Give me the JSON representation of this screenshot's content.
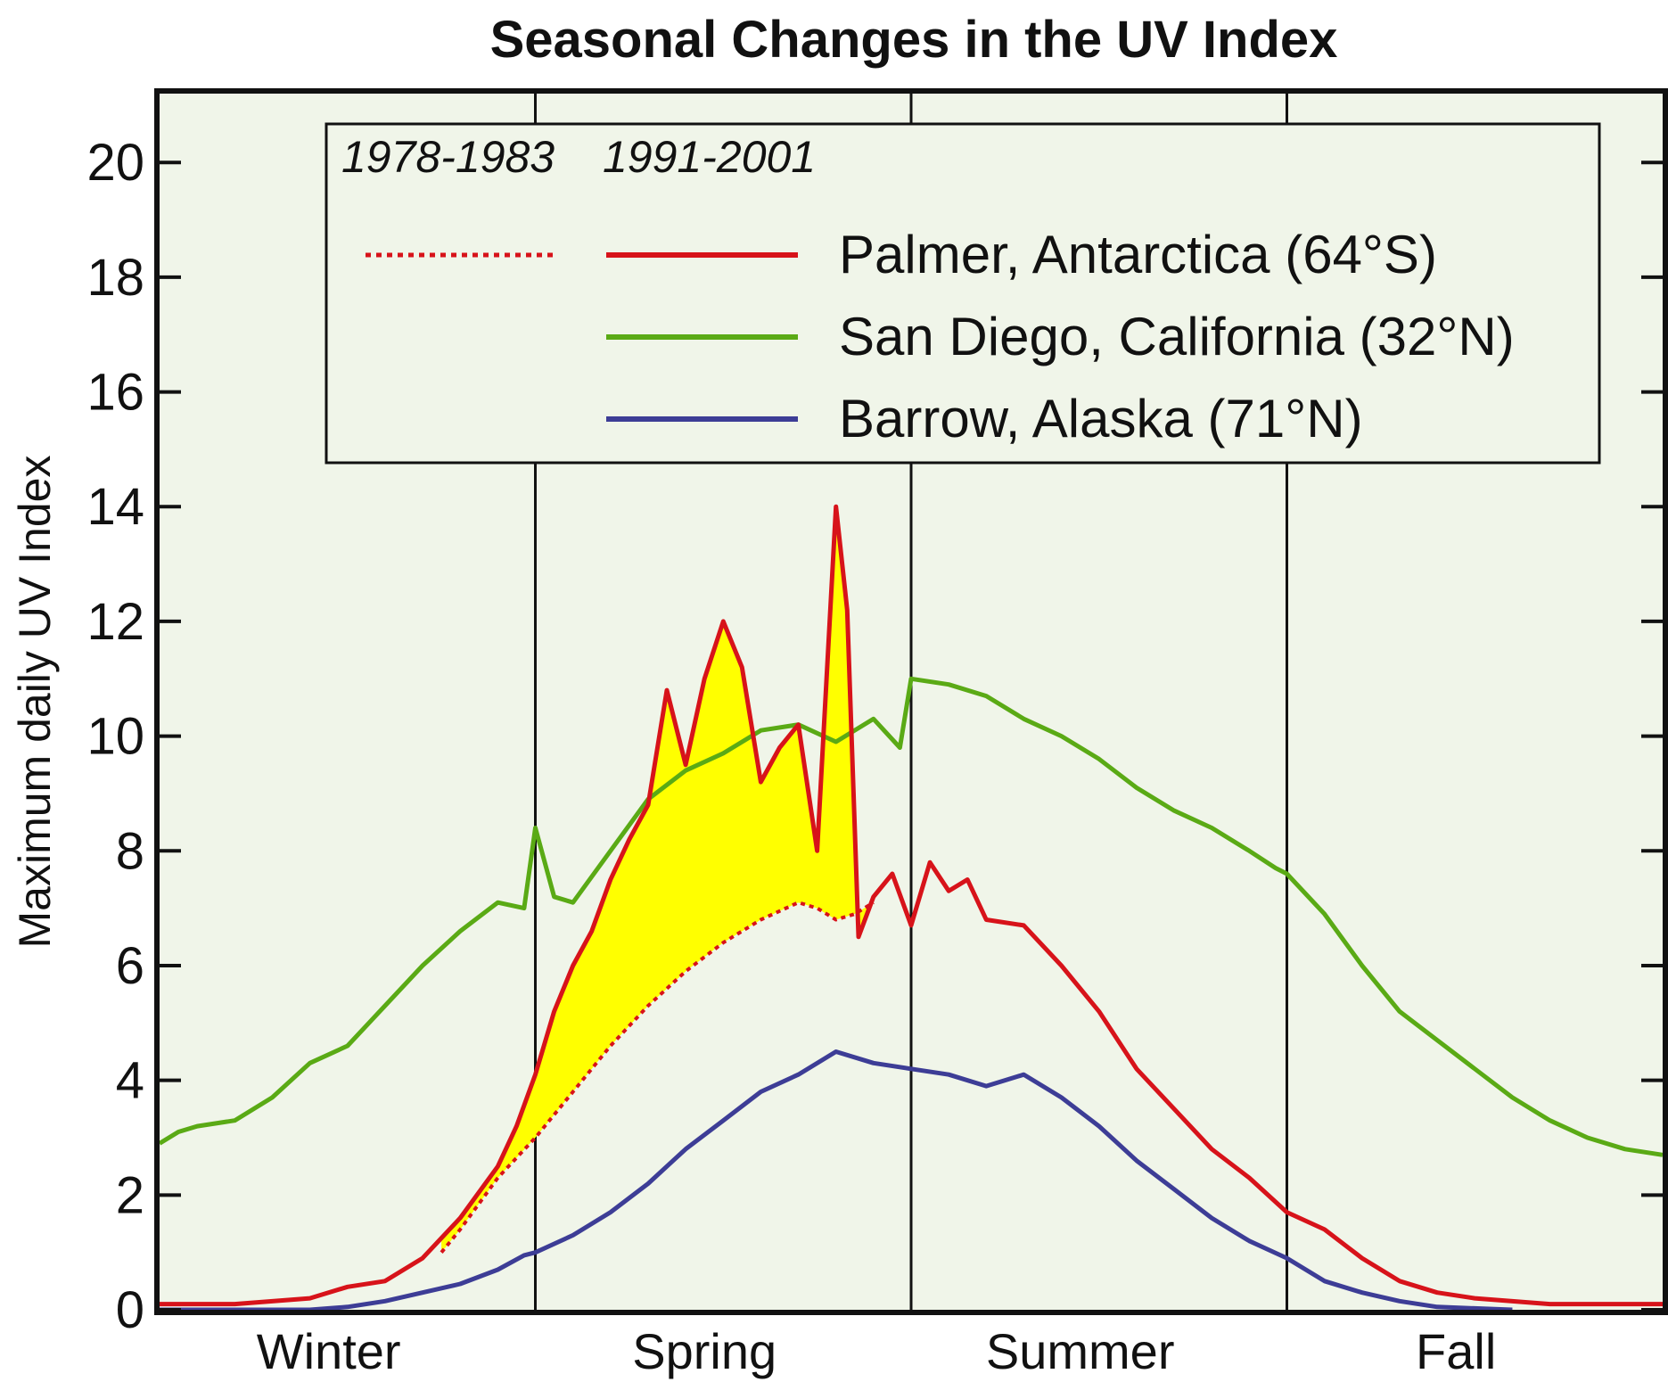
{
  "chart_data": {
    "type": "line",
    "title": "Seasonal Changes in the UV Index",
    "ylabel": "Maximum daily UV Index",
    "xlabel": "",
    "ylim": [
      0,
      21.2
    ],
    "yticks": [
      0,
      2,
      4,
      6,
      8,
      10,
      12,
      14,
      16,
      18,
      20
    ],
    "x_categories": [
      "Winter",
      "Spring",
      "Summer",
      "Fall"
    ],
    "grid": false,
    "legend_position": "top-right",
    "legend": {
      "header_left": "1978-1983",
      "header_right": "1991-2001",
      "entries": [
        {
          "label": "Palmer, Antarctica (64°S)",
          "color": "#d7131a",
          "style": "solid",
          "has_dotted": true
        },
        {
          "label": "San Diego, California (32°N)",
          "color": "#5aaa15",
          "style": "solid",
          "has_dotted": false
        },
        {
          "label": "Barrow, Alaska (71°N)",
          "color": "#3d3d96",
          "style": "solid",
          "has_dotted": false
        }
      ]
    },
    "fill_color": "#ffff00",
    "plot_bg": "#f0f5e9",
    "series": [
      {
        "name": "San Diego, California (32°N)",
        "color": "#5aaa15",
        "style": "solid",
        "x": [
          0,
          0.05,
          0.1,
          0.2,
          0.3,
          0.4,
          0.5,
          0.6,
          0.7,
          0.8,
          0.9,
          0.97,
          1.0,
          1.05,
          1.1,
          1.2,
          1.3,
          1.4,
          1.5,
          1.6,
          1.7,
          1.8,
          1.9,
          1.97,
          2.0,
          2.1,
          2.2,
          2.3,
          2.4,
          2.5,
          2.6,
          2.7,
          2.8,
          2.9,
          2.97,
          3.0,
          3.1,
          3.2,
          3.3,
          3.4,
          3.5,
          3.6,
          3.7,
          3.8,
          3.9,
          4.0
        ],
        "values": [
          2.9,
          3.1,
          3.2,
          3.3,
          3.7,
          4.3,
          4.6,
          5.3,
          6.0,
          6.6,
          7.1,
          7.0,
          8.4,
          7.2,
          7.1,
          8.0,
          8.9,
          9.4,
          9.7,
          10.1,
          10.2,
          9.9,
          10.3,
          9.8,
          11.0,
          10.9,
          10.7,
          10.3,
          10.0,
          9.6,
          9.1,
          8.7,
          8.4,
          8.0,
          7.7,
          7.6,
          6.9,
          6.0,
          5.2,
          4.7,
          4.2,
          3.7,
          3.3,
          3.0,
          2.8,
          2.7
        ]
      },
      {
        "name": "Palmer, Antarctica (64°S)",
        "color": "#d7131a",
        "style": "solid",
        "x": [
          0,
          0.2,
          0.4,
          0.5,
          0.6,
          0.7,
          0.8,
          0.9,
          0.95,
          1.0,
          1.05,
          1.1,
          1.15,
          1.2,
          1.25,
          1.3,
          1.35,
          1.4,
          1.45,
          1.5,
          1.55,
          1.6,
          1.65,
          1.7,
          1.75,
          1.8,
          1.83,
          1.86,
          1.9,
          1.95,
          2.0,
          2.05,
          2.1,
          2.15,
          2.2,
          2.3,
          2.4,
          2.5,
          2.6,
          2.7,
          2.8,
          2.9,
          3.0,
          3.1,
          3.2,
          3.3,
          3.4,
          3.5,
          3.7,
          4.0
        ],
        "values": [
          0.1,
          0.1,
          0.2,
          0.4,
          0.5,
          0.9,
          1.6,
          2.5,
          3.2,
          4.1,
          5.2,
          6.0,
          6.6,
          7.5,
          8.2,
          8.8,
          10.8,
          9.5,
          11.0,
          12.0,
          11.2,
          9.2,
          9.8,
          10.2,
          8.0,
          14.0,
          12.2,
          6.5,
          7.2,
          7.6,
          6.7,
          7.8,
          7.3,
          7.5,
          6.8,
          6.7,
          6.0,
          5.2,
          4.2,
          3.5,
          2.8,
          2.3,
          1.7,
          1.4,
          0.9,
          0.5,
          0.3,
          0.2,
          0.1,
          0.1
        ]
      },
      {
        "name": "Palmer, Antarctica (64°S) 1978-1983",
        "color": "#d7131a",
        "style": "dotted",
        "x": [
          0.75,
          0.8,
          0.9,
          1.0,
          1.1,
          1.2,
          1.3,
          1.4,
          1.5,
          1.6,
          1.7,
          1.75,
          1.8,
          1.85,
          1.9
        ],
        "values": [
          1.0,
          1.4,
          2.3,
          3.0,
          3.8,
          4.6,
          5.3,
          5.9,
          6.4,
          6.8,
          7.1,
          7.0,
          6.8,
          6.9,
          7.1
        ]
      },
      {
        "name": "Barrow, Alaska (71°N)",
        "color": "#3d3d96",
        "style": "solid",
        "x": [
          0,
          0.4,
          0.5,
          0.6,
          0.7,
          0.8,
          0.9,
          0.97,
          1.0,
          1.1,
          1.2,
          1.3,
          1.4,
          1.5,
          1.6,
          1.7,
          1.8,
          1.9,
          2.0,
          2.1,
          2.2,
          2.3,
          2.4,
          2.5,
          2.6,
          2.7,
          2.8,
          2.9,
          3.0,
          3.1,
          3.2,
          3.3,
          3.4,
          3.6
        ],
        "values": [
          0,
          0,
          0.05,
          0.15,
          0.3,
          0.45,
          0.7,
          0.95,
          1.0,
          1.3,
          1.7,
          2.2,
          2.8,
          3.3,
          3.8,
          4.1,
          4.5,
          4.3,
          4.2,
          4.1,
          3.9,
          4.1,
          3.7,
          3.2,
          2.6,
          2.1,
          1.6,
          1.2,
          0.9,
          0.5,
          0.3,
          0.15,
          0.05,
          0
        ]
      }
    ]
  }
}
